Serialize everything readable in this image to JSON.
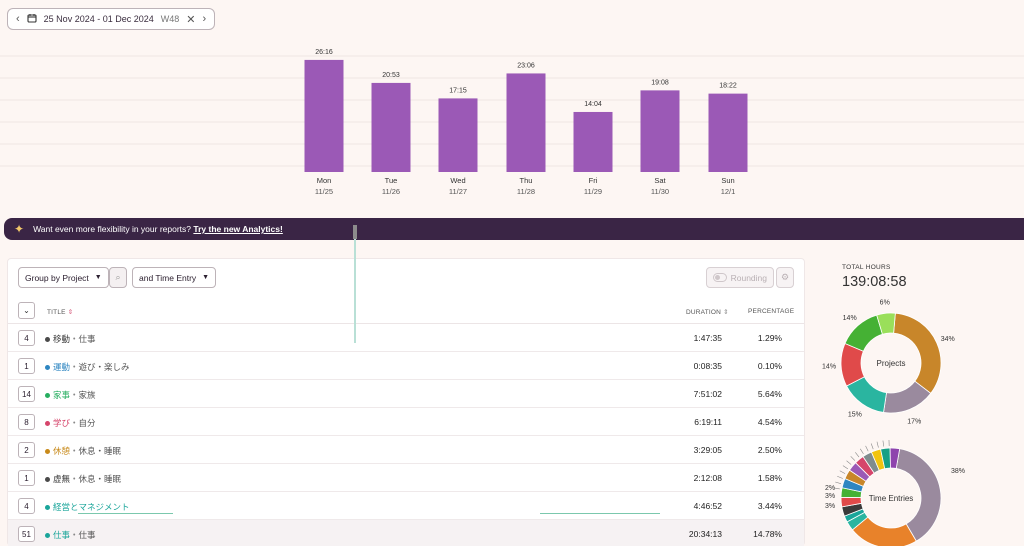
{
  "date_picker": {
    "prev": "‹",
    "range": "25 Nov 2024 - 01 Dec 2024",
    "week": "W48",
    "clear": "✕",
    "next": "›"
  },
  "chart_data": {
    "type": "bar",
    "categories": [
      "Mon",
      "Tue",
      "Wed",
      "Thu",
      "Fri",
      "Sat",
      "Sun"
    ],
    "dates": [
      "11/25",
      "11/26",
      "11/27",
      "11/28",
      "11/29",
      "11/30",
      "12/1"
    ],
    "labels": [
      "26:16",
      "20:53",
      "17:15",
      "23:06",
      "14:04",
      "19:08",
      "18:22"
    ],
    "values": [
      26.27,
      20.88,
      17.25,
      23.1,
      14.07,
      19.13,
      18.37
    ],
    "ylim": [
      0,
      30
    ],
    "color": "#9b59b6"
  },
  "banner": {
    "text": "Want even more flexibility in your reports?",
    "link": "Try the new Analytics!"
  },
  "controls": {
    "group_by": "Group by Project",
    "and_by": "and Time Entry",
    "rounding": "Rounding"
  },
  "table": {
    "headers": {
      "title": "TITLE",
      "duration": "DURATION",
      "percentage": "PERCENTAGE"
    },
    "rows": [
      {
        "count": "4",
        "project": "移動",
        "client": "仕事",
        "color": "#4a4a4a",
        "pcolor": "#333333",
        "duration": "1:47:35",
        "pct": "1.29%"
      },
      {
        "count": "1",
        "project": "運動",
        "client": "遊び・楽しみ",
        "color": "#2e86c1",
        "pcolor": "#2e86c1",
        "duration": "0:08:35",
        "pct": "0.10%"
      },
      {
        "count": "14",
        "project": "家事",
        "client": "家族",
        "color": "#27ae60",
        "pcolor": "#27ae60",
        "duration": "7:51:02",
        "pct": "5.64%"
      },
      {
        "count": "8",
        "project": "学び",
        "client": "自分",
        "color": "#d6456b",
        "pcolor": "#d6456b",
        "duration": "6:19:11",
        "pct": "4.54%"
      },
      {
        "count": "2",
        "project": "休憩",
        "client": "休息・睡眠",
        "color": "#c88a1a",
        "pcolor": "#c88a1a",
        "duration": "3:29:05",
        "pct": "2.50%"
      },
      {
        "count": "1",
        "project": "虚無",
        "client": "休息・睡眠",
        "color": "#4a4a4a",
        "pcolor": "#333333",
        "duration": "2:12:08",
        "pct": "1.58%"
      },
      {
        "count": "4",
        "project": "経営とマネジメント",
        "client": "",
        "color": "#1aa59a",
        "pcolor": "#1aa59a",
        "duration": "4:46:52",
        "pct": "3.44%"
      },
      {
        "count": "51",
        "project": "仕事",
        "client": "仕事",
        "color": "#1aa59a",
        "pcolor": "#1aa59a",
        "duration": "20:34:13",
        "pct": "14.78%"
      }
    ]
  },
  "summary": {
    "total_label": "TOTAL HOURS",
    "total": "139:08:58"
  },
  "projects_donut": {
    "label": "Projects",
    "slices": [
      {
        "value": 34,
        "color": "#c8862a",
        "label": "34%"
      },
      {
        "value": 17,
        "color": "#9a8a9e",
        "label": "17%"
      },
      {
        "value": 15,
        "color": "#2ab5a0",
        "label": "15%"
      },
      {
        "value": 14,
        "color": "#e04a4a",
        "label": "14%"
      },
      {
        "value": 14,
        "color": "#45b134",
        "label": "14%"
      },
      {
        "value": 6,
        "color": "#9adf5a",
        "label": "6%"
      }
    ]
  },
  "entries_donut": {
    "label": "Time Entries",
    "visible_labels": [
      "38%",
      "3%",
      "2%",
      "3%"
    ],
    "slices": [
      {
        "value": 38,
        "color": "#9a8a9e"
      },
      {
        "value": 22,
        "color": "#e8822a"
      },
      {
        "value": 3,
        "color": "#2ab5a0"
      },
      {
        "value": 2,
        "color": "#1aa59a"
      },
      {
        "value": 3,
        "color": "#3a3a3a"
      },
      {
        "value": 3,
        "color": "#e04a4a"
      },
      {
        "value": 3,
        "color": "#45b134"
      },
      {
        "value": 3,
        "color": "#2e86c1"
      },
      {
        "value": 3,
        "color": "#c8862a"
      },
      {
        "value": 3,
        "color": "#9b59b6"
      },
      {
        "value": 3,
        "color": "#d6456b"
      },
      {
        "value": 3,
        "color": "#7f8c8d"
      },
      {
        "value": 3,
        "color": "#f1c40f"
      },
      {
        "value": 3,
        "color": "#16a085"
      },
      {
        "value": 3,
        "color": "#8e44ad"
      }
    ]
  }
}
